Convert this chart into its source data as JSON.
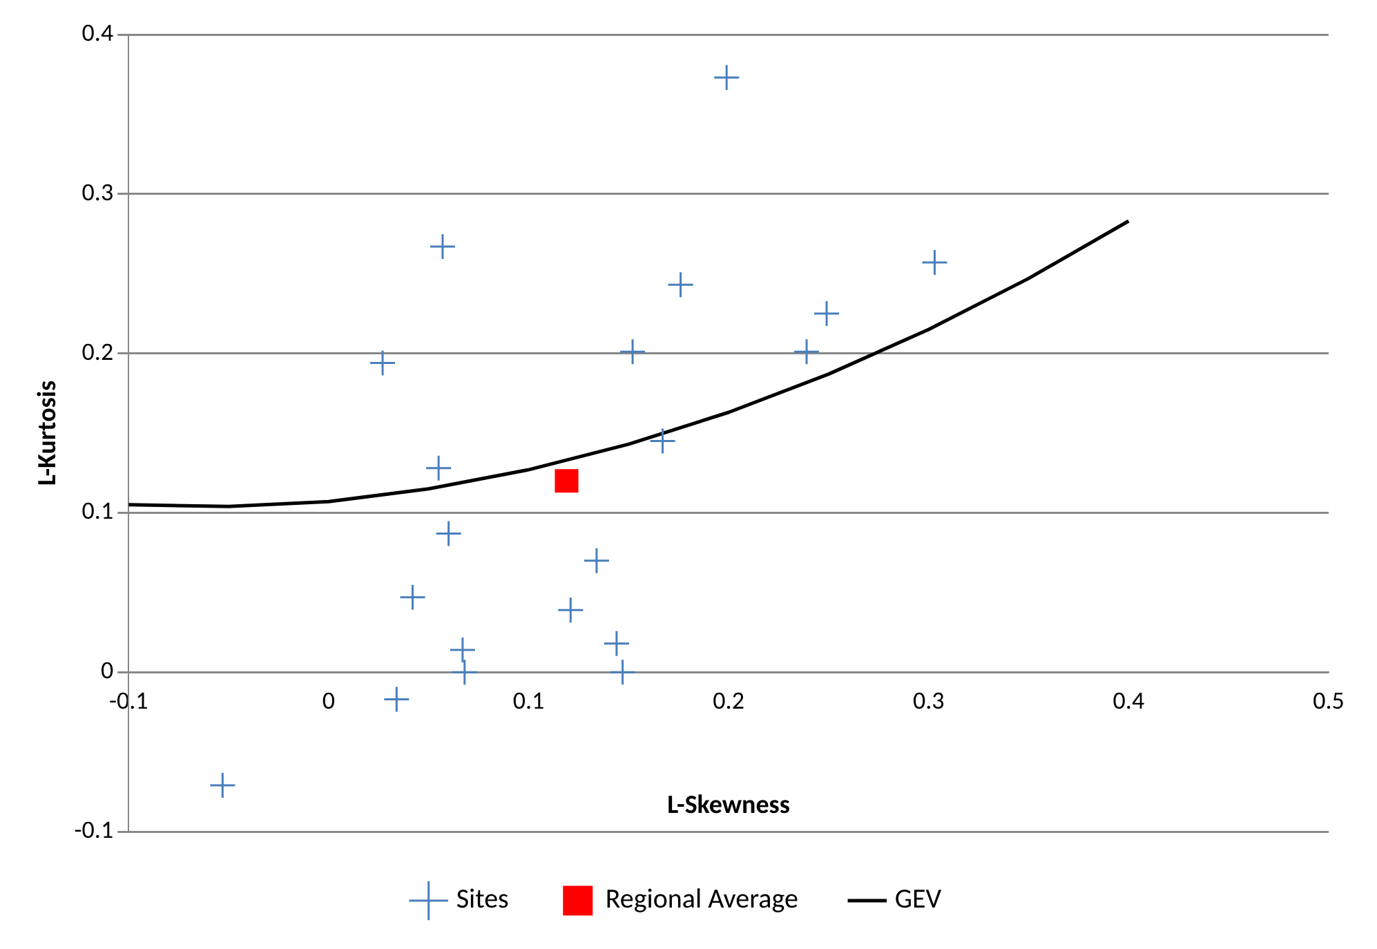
{
  "chart_data": {
    "type": "scatter",
    "xlabel": "L-Skewness",
    "ylabel": "L-Kurtosis",
    "xlim": [
      -0.1,
      0.5
    ],
    "xticks": [
      -0.1,
      0,
      0.1,
      0.2,
      0.3,
      0.4,
      0.5
    ],
    "ylim": [
      -0.1,
      0.4
    ],
    "yticks": [
      -0.1,
      0,
      0.1,
      0.2,
      0.3,
      0.4
    ],
    "grid": "y",
    "legend": "bottom",
    "series": [
      {
        "name": "Sites",
        "type": "scatter",
        "marker": "cross",
        "color": "#4a7ebb",
        "x": [
          -0.053,
          0.034,
          0.042,
          0.06,
          0.055,
          0.067,
          0.068,
          0.027,
          0.057,
          0.134,
          0.121,
          0.144,
          0.147,
          0.152,
          0.167,
          0.176,
          0.199,
          0.239,
          0.249,
          0.303
        ],
        "values": [
          -0.071,
          -0.017,
          0.047,
          0.087,
          0.128,
          0.014,
          0.0,
          0.194,
          0.267,
          0.07,
          0.039,
          0.018,
          0.0,
          0.201,
          0.145,
          0.243,
          0.373,
          0.201,
          0.225,
          0.257
        ]
      },
      {
        "name": "Regional Average",
        "type": "scatter",
        "marker": "square",
        "color": "#ff0000",
        "x": [
          0.119
        ],
        "values": [
          0.12
        ]
      },
      {
        "name": "GEV",
        "type": "line",
        "marker": "none",
        "line_style": "solid",
        "color": "#000000",
        "x": [
          -0.1,
          -0.05,
          0,
          0.05,
          0.1,
          0.15,
          0.2,
          0.25,
          0.3,
          0.35,
          0.4
        ],
        "values": [
          0.105,
          0.104,
          0.107,
          0.115,
          0.127,
          0.143,
          0.163,
          0.187,
          0.215,
          0.247,
          0.283
        ]
      }
    ]
  }
}
